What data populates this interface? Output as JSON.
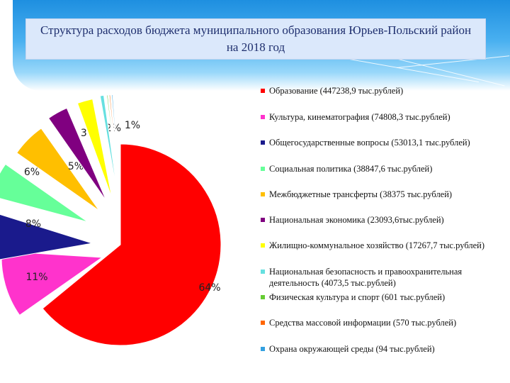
{
  "title": "Структура расходов бюджета муниципального образования Юрьев-Польский район на 2018 год",
  "colors": {
    "header_gradient": [
      "#1e8fe0",
      "#9ad8fa"
    ],
    "title_box": "#dbe8fb",
    "title_text": "#1f2f6e"
  },
  "chart_data": {
    "type": "pie",
    "title": "Структура расходов бюджета муниципального образования Юрьев-Польский район на 2018 год",
    "legend_position": "right",
    "slices": [
      {
        "label": "Образование (447238,9 тыс.рублей)",
        "pct_label": "64%",
        "value": 447238.9,
        "color": "#ff0000"
      },
      {
        "label": "Культура, кинематография (74808,3 тыс.рублей)",
        "pct_label": "11%",
        "value": 74808.3,
        "color": "#ff33cc"
      },
      {
        "label": "Общегосударственные вопросы (53013,1 тыс.рублей)",
        "pct_label": "8%",
        "value": 53013.1,
        "color": "#1a1a8c"
      },
      {
        "label": "Социальная политика (38847,6 тыс.рублей)",
        "pct_label": "6%",
        "value": 38847.6,
        "color": "#66ff99"
      },
      {
        "label": "Межбюджетные трансферты (38375 тыс.рублей)",
        "pct_label": "5%",
        "value": 38375,
        "color": "#ffbf00"
      },
      {
        "label": "Национальная экономика (23093,6тыс.рублей)",
        "pct_label": "3%",
        "value": 23093.6,
        "color": "#800080"
      },
      {
        "label": "Жилищно-коммунальное хозяйство (17267,7 тыс.рублей)",
        "pct_label": "2%",
        "value": 17267.7,
        "color": "#ffff00"
      },
      {
        "label": "Национальная безопасность и правоохранительная деятельность (4073,5 тыс.рублей)",
        "pct_label": "1%",
        "value": 4073.5,
        "color": "#66e0e0"
      },
      {
        "label": "Физическая культура и спорт (601 тыс.рублей)",
        "pct_label": "",
        "value": 601,
        "color": "#66cc33"
      },
      {
        "label": "Средства массовой информации (570 тыс.рублей)",
        "pct_label": "",
        "value": 570,
        "color": "#ff6600"
      },
      {
        "label": "Охрана окружающей среды (94 тыс.рублей)",
        "pct_label": "",
        "value": 94,
        "color": "#33a0e0"
      }
    ]
  }
}
